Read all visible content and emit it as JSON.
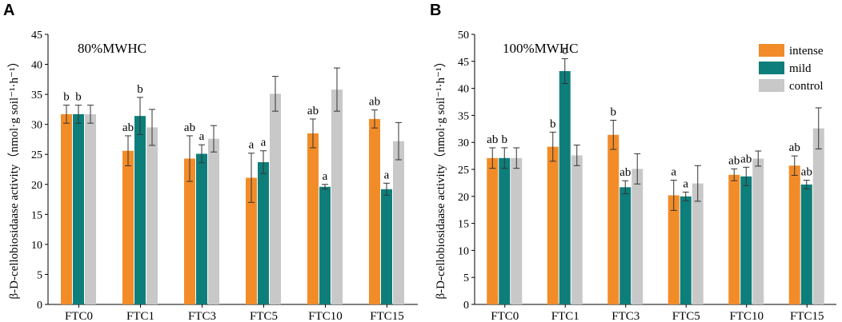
{
  "chart_data": [
    {
      "type": "bar",
      "panel": "A",
      "condition": "80%MWHC",
      "ylabel": "β-D-cellobiosidaase activity（nmol·g soil⁻¹·h⁻¹）",
      "ylim": [
        0,
        45
      ],
      "yticks": [
        0,
        5,
        10,
        15,
        20,
        25,
        30,
        35,
        40,
        45
      ],
      "categories": [
        "FTC0",
        "FTC1",
        "FTC3",
        "FTC5",
        "FTC10",
        "FTC15"
      ],
      "series": [
        {
          "name": "intense",
          "color": "#F28C28",
          "values": [
            31.7,
            25.6,
            24.3,
            21.1,
            28.5,
            30.9
          ],
          "errors": [
            1.5,
            2.5,
            3.8,
            4.1,
            2.4,
            1.5
          ],
          "labels": [
            "b",
            "ab",
            "ab",
            "a",
            "ab",
            "ab"
          ]
        },
        {
          "name": "mild",
          "color": "#0E7E7A",
          "values": [
            31.7,
            31.4,
            25.1,
            23.7,
            19.6,
            19.2
          ],
          "errors": [
            1.5,
            3.1,
            1.5,
            1.9,
            0.4,
            1.0
          ],
          "labels": [
            "b",
            "b",
            "a",
            "a",
            "a",
            "a"
          ]
        },
        {
          "name": "control",
          "color": "#C8C8C8",
          "values": [
            31.7,
            29.5,
            27.6,
            35.1,
            35.8,
            27.2
          ],
          "errors": [
            1.5,
            3.0,
            2.2,
            2.9,
            3.6,
            3.1
          ],
          "labels": [
            "",
            "",
            "",
            "",
            "",
            ""
          ]
        }
      ]
    },
    {
      "type": "bar",
      "panel": "B",
      "condition": "100%MWHC",
      "ylabel": "β-D-cellobiosidaase activity（nmol·g soil⁻¹·h⁻¹）",
      "ylim": [
        0,
        50
      ],
      "yticks": [
        0,
        5,
        10,
        15,
        20,
        25,
        30,
        35,
        40,
        45,
        50
      ],
      "categories": [
        "FTC0",
        "FTC1",
        "FTC3",
        "FTC5",
        "FTC10",
        "FTC15"
      ],
      "legend": [
        "intense",
        "mild",
        "control"
      ],
      "series": [
        {
          "name": "intense",
          "color": "#F28C28",
          "values": [
            27.1,
            29.2,
            31.4,
            20.2,
            24.0,
            25.7
          ],
          "errors": [
            1.9,
            2.7,
            2.7,
            2.8,
            1.1,
            1.8
          ],
          "labels": [
            "ab",
            "b",
            "b",
            "a",
            "ab",
            "ab"
          ]
        },
        {
          "name": "mild",
          "color": "#0E7E7A",
          "values": [
            27.1,
            43.2,
            21.7,
            20.0,
            23.7,
            22.2
          ],
          "errors": [
            1.9,
            2.3,
            1.2,
            0.8,
            1.7,
            0.8
          ],
          "labels": [
            "b",
            "c",
            "ab",
            "a",
            "ab",
            "ab"
          ]
        },
        {
          "name": "control",
          "color": "#C8C8C8",
          "values": [
            27.1,
            27.6,
            25.1,
            22.4,
            27.0,
            32.6
          ],
          "errors": [
            1.9,
            1.9,
            2.8,
            3.3,
            1.4,
            3.8
          ],
          "labels": [
            "",
            "",
            "",
            "",
            "",
            ""
          ]
        }
      ]
    }
  ]
}
